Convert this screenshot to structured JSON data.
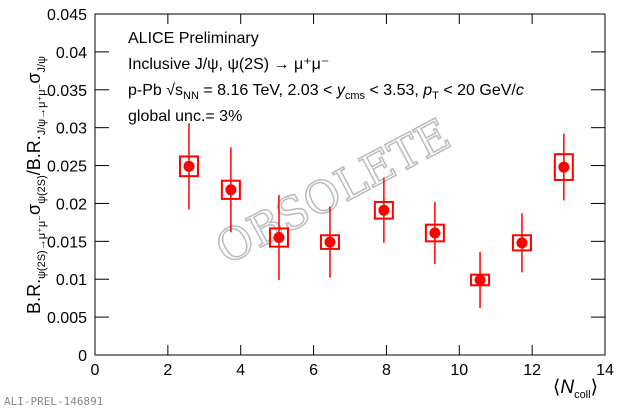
{
  "chart_data": {
    "type": "scatter",
    "ylabel": [
      "B.R.",
      "ψ(2S)→μ⁺μ⁻",
      "σ",
      "ψ(2S)",
      "/B.R.",
      "J/ψ→μ⁺μ⁻",
      "σ",
      "J/ψ"
    ],
    "xlabel": [
      "⟨",
      "N",
      "coll",
      "⟩"
    ],
    "annotations": {
      "line1": "ALICE Preliminary",
      "line2": "Inclusive J/ψ, ψ(2S) → μ⁺μ⁻",
      "line3": [
        "p-Pb √",
        "s",
        "NN",
        " = 8.16 TeV, 2.03 < ",
        "y",
        "cms",
        " < 3.53, ",
        "p",
        "T",
        " < 20 GeV/",
        "c"
      ],
      "line4": "global unc.= 3%",
      "watermark": "OBSOLETE",
      "footer": "ALI-PREL-146891"
    },
    "series": [
      {
        "name": "ALICE",
        "color": "#ff0000",
        "x": [
          2.58,
          3.73,
          5.05,
          6.45,
          7.93,
          9.33,
          10.57,
          11.72,
          12.87
        ],
        "values": [
          0.0249,
          0.0218,
          0.0155,
          0.0149,
          0.0191,
          0.0161,
          0.0099,
          0.0148,
          0.0248
        ],
        "errors": [
          0.0057,
          0.0056,
          0.0056,
          0.0047,
          0.0043,
          0.0041,
          0.0037,
          0.0039,
          0.0044
        ],
        "sys_errors": [
          0.0013,
          0.0012,
          0.0012,
          0.0009,
          0.0011,
          0.0011,
          0.0007,
          0.001,
          0.0017
        ]
      }
    ],
    "xlim": [
      0,
      14
    ],
    "xticks": [
      0,
      2,
      4,
      6,
      8,
      10,
      12,
      14
    ],
    "ylim": [
      0,
      0.045
    ],
    "yticks": [
      0,
      0.005,
      0.01,
      0.015,
      0.02,
      0.025,
      0.03,
      0.035,
      0.04,
      0.045
    ],
    "grid": false
  }
}
